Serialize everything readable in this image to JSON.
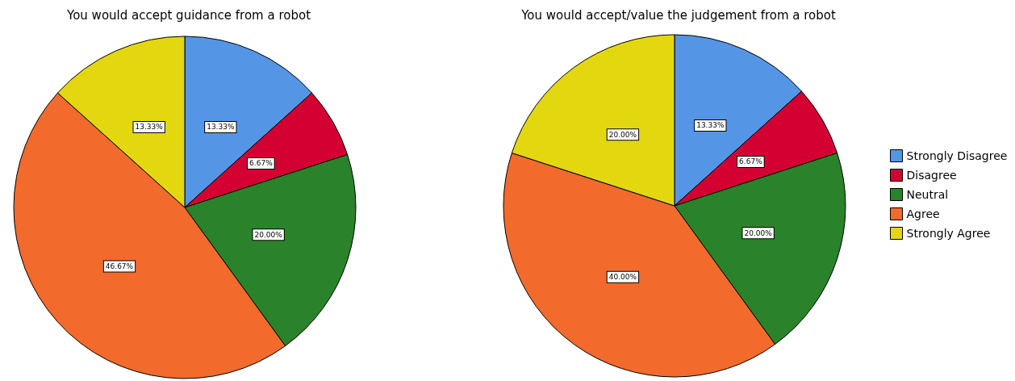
{
  "chart_data": [
    {
      "type": "pie",
      "title": "You would accept guidance from a robot",
      "categories": [
        null,
        null,
        null,
        null,
        null
      ],
      "values": [
        13.33,
        6.67,
        20,
        46.67,
        13.33
      ],
      "colors": [
        "#5595e5",
        "#d50032",
        "#2a832a",
        "#f26a2c",
        "#e3d810"
      ],
      "value_labels": [
        "13.33%",
        "6.67%",
        "20.00%",
        "46.67%",
        "13.33%"
      ],
      "legend": false
    },
    {
      "type": "pie",
      "title": "You would accept/value the judgement from a robot",
      "categories": [
        "Strongly Disagree",
        "Disagree",
        "Neutral",
        "Agree",
        "Strongly Agree"
      ],
      "values": [
        13.33,
        6.67,
        20,
        40,
        20
      ],
      "colors": [
        "#5595e5",
        "#d50032",
        "#2a832a",
        "#f26a2c",
        "#e3d810"
      ],
      "value_labels": [
        "13.33%",
        "6.67%",
        "20.00%",
        "40.00%",
        "20.00%"
      ],
      "legend": "right"
    }
  ]
}
